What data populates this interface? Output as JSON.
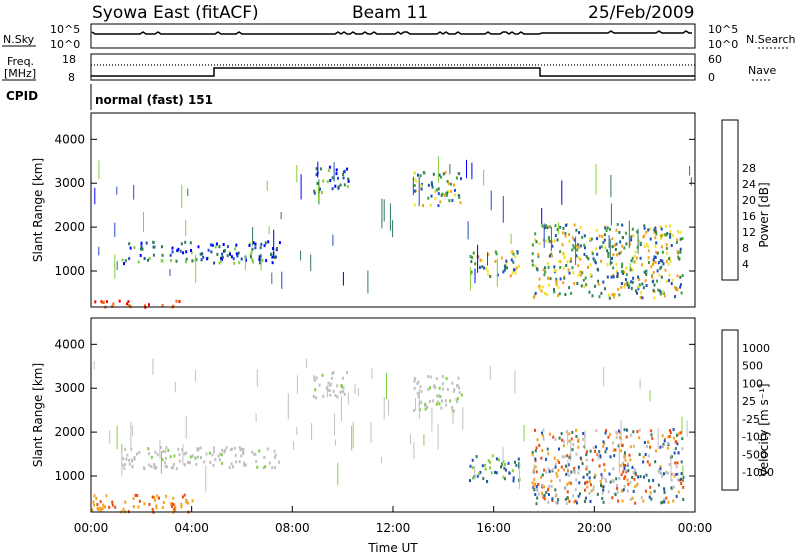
{
  "header": {
    "station": "Syowa East (fitACF)",
    "beam": "Beam 11",
    "date": "25/Feb/2009"
  },
  "strips": {
    "nsky": {
      "label": "N.Sky",
      "tick_top": "10^5",
      "tick_bottom": "10^0"
    },
    "nsearch": {
      "label": "N.Search",
      "tick_top": "10^5",
      "tick_bottom": "10^0"
    },
    "freq": {
      "label_line1": "Freq.",
      "label_line2": "[MHz]",
      "tick_top": "18",
      "tick_bottom": "8"
    },
    "nave": {
      "label": "Nave",
      "tick_top": "60",
      "tick_bottom": "0"
    },
    "cpid": {
      "label": "CPID",
      "mode": "normal (fast) 151"
    }
  },
  "chart_data": [
    {
      "type": "heatmap",
      "panel": "power",
      "ylabel": "Slant Range [km]",
      "xlabel": "",
      "yticks": [
        "1000",
        "2000",
        "3000",
        "4000"
      ],
      "ylim": [
        180,
        4600
      ],
      "xlim": [
        0,
        24
      ],
      "colorbar": {
        "label": "Power [dB]",
        "ticks": [
          "4",
          "8",
          "12",
          "16",
          "20",
          "24",
          "28"
        ],
        "colors": [
          "#0000ff",
          "#1f4fbf",
          "#2f7a5a",
          "#3aa040",
          "#7fd03a",
          "#f2e12a",
          "#f5a21a",
          "#f06a0f",
          "#e82a0a",
          "#ff0000"
        ]
      },
      "features": [
        {
          "from_ut": 0.0,
          "to_ut": 3.5,
          "range_km": [
            200,
            350
          ],
          "level": "high"
        },
        {
          "from_ut": 1.2,
          "to_ut": 7.5,
          "range_km": [
            1200,
            1700
          ],
          "level": "low"
        },
        {
          "from_ut": 8.8,
          "to_ut": 10.2,
          "range_km": [
            2800,
            3400
          ],
          "level": "low"
        },
        {
          "from_ut": 12.8,
          "to_ut": 14.7,
          "range_km": [
            2500,
            3300
          ],
          "level": "medium"
        },
        {
          "from_ut": 15.0,
          "to_ut": 17.0,
          "range_km": [
            900,
            1500
          ],
          "level": "medium"
        },
        {
          "from_ut": 17.5,
          "to_ut": 23.5,
          "range_km": [
            400,
            2100
          ],
          "level": "medium"
        }
      ]
    },
    {
      "type": "heatmap",
      "panel": "velocity",
      "ylabel": "Slant Range [km]",
      "xlabel": "Time UT",
      "xticks": [
        "00:00",
        "04:00",
        "08:00",
        "12:00",
        "16:00",
        "20:00",
        "00:00"
      ],
      "yticks": [
        "1000",
        "2000",
        "3000",
        "4000"
      ],
      "ylim": [
        180,
        4600
      ],
      "xlim": [
        0,
        24
      ],
      "colorbar": {
        "label": "Velocity [m s⁻¹]",
        "ticks": [
          "-1000",
          "-500",
          "-100",
          "-25",
          "25",
          "100",
          "500",
          "1000"
        ],
        "colors": [
          "#ff0000",
          "#f04a0a",
          "#f5a21a",
          "#f2e12a",
          "#c0c0c0",
          "#7fd03a",
          "#2f7a5a",
          "#1f4fbf",
          "#0000ff"
        ]
      },
      "features": [
        {
          "from_ut": 0.0,
          "to_ut": 4.0,
          "range_km": [
            200,
            600
          ],
          "class": "negative"
        },
        {
          "from_ut": 1.2,
          "to_ut": 7.5,
          "range_km": [
            1200,
            1700
          ],
          "class": "ground"
        },
        {
          "from_ut": 8.8,
          "to_ut": 10.2,
          "range_km": [
            2800,
            3400
          ],
          "class": "ground"
        },
        {
          "from_ut": 12.8,
          "to_ut": 14.7,
          "range_km": [
            2500,
            3300
          ],
          "class": "ground"
        },
        {
          "from_ut": 15.0,
          "to_ut": 17.0,
          "range_km": [
            900,
            1500
          ],
          "class": "positive"
        },
        {
          "from_ut": 17.5,
          "to_ut": 23.5,
          "range_km": [
            400,
            2100
          ],
          "class": "mixed"
        }
      ]
    }
  ]
}
